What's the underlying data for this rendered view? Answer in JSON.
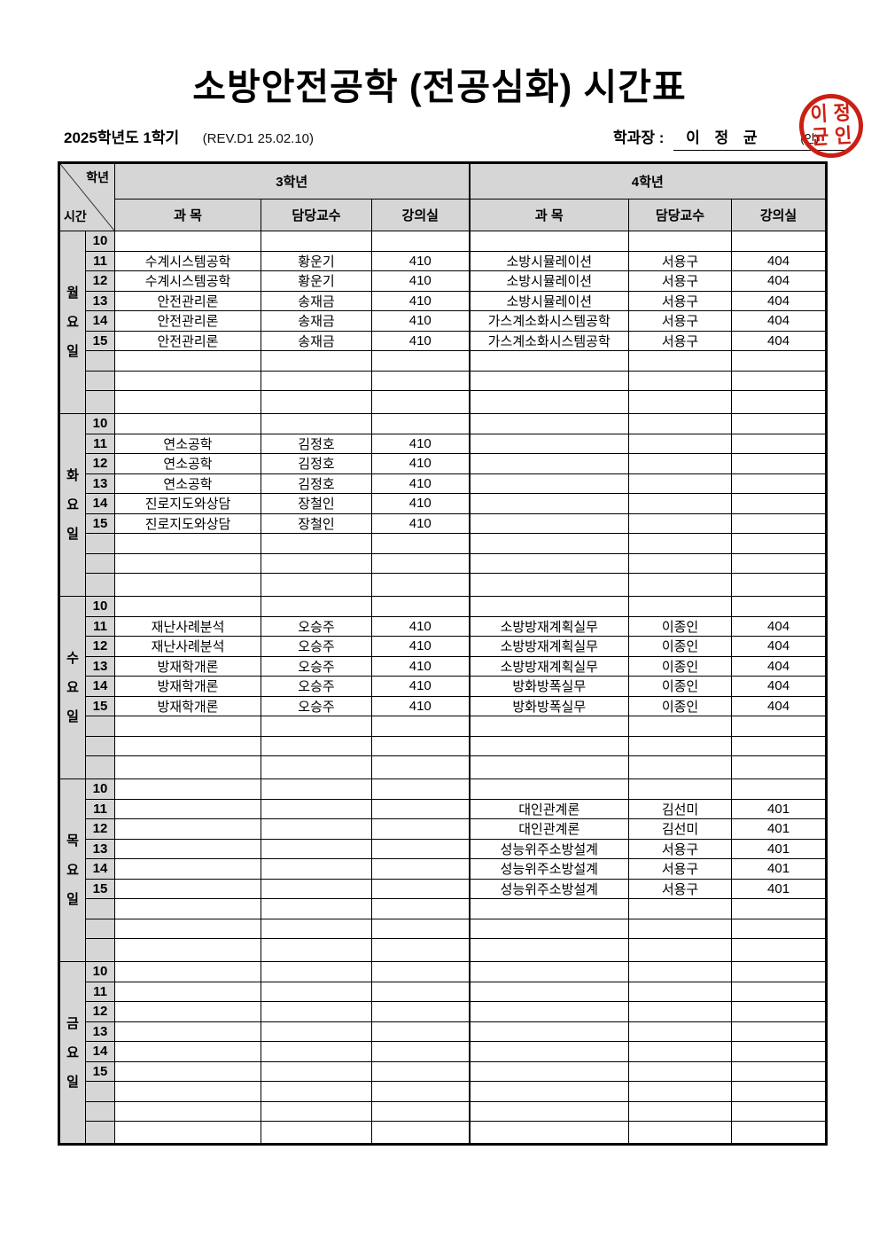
{
  "title": "소방안전공학 (전공심화) 시간표",
  "meta": {
    "semester": "2025학년도 1학기",
    "revision": "(REV.D1 25.02.10)"
  },
  "signature": {
    "label": "학과장 :",
    "name": "이 정 균",
    "seal_suffix": "(인)",
    "stamp_color": "#cc1f14",
    "stamp_chars": [
      "이",
      "정",
      "균",
      "인"
    ]
  },
  "table": {
    "corner": {
      "top": "학년",
      "bottom": "시간"
    },
    "grade_headers": [
      "3학년",
      "4학년"
    ],
    "sub_headers": [
      "과      목",
      "담당교수",
      "강의실"
    ],
    "days": [
      {
        "label": [
          "월",
          "요",
          "일"
        ],
        "rows": [
          {
            "time": "10",
            "g3": [
              "",
              "",
              ""
            ],
            "g4": [
              "",
              "",
              ""
            ]
          },
          {
            "time": "11",
            "g3": [
              "수계시스템공학",
              "황운기",
              "410"
            ],
            "g4": [
              "소방시뮬레이션",
              "서용구",
              "404"
            ]
          },
          {
            "time": "12",
            "g3": [
              "수계시스템공학",
              "황운기",
              "410"
            ],
            "g4": [
              "소방시뮬레이션",
              "서용구",
              "404"
            ]
          },
          {
            "time": "13",
            "g3": [
              "안전관리론",
              "송재금",
              "410"
            ],
            "g4": [
              "소방시뮬레이션",
              "서용구",
              "404"
            ]
          },
          {
            "time": "14",
            "g3": [
              "안전관리론",
              "송재금",
              "410"
            ],
            "g4": [
              "가스계소화시스템공학",
              "서용구",
              "404"
            ]
          },
          {
            "time": "15",
            "g3": [
              "안전관리론",
              "송재금",
              "410"
            ],
            "g4": [
              "가스계소화시스템공학",
              "서용구",
              "404"
            ]
          },
          {
            "time": "",
            "g3": [
              "",
              "",
              ""
            ],
            "g4": [
              "",
              "",
              ""
            ]
          },
          {
            "time": "",
            "g3": [
              "",
              "",
              ""
            ],
            "g4": [
              "",
              "",
              ""
            ]
          },
          {
            "time": "",
            "g3": [
              "",
              "",
              ""
            ],
            "g4": [
              "",
              "",
              ""
            ]
          }
        ]
      },
      {
        "label": [
          "화",
          "요",
          "일"
        ],
        "rows": [
          {
            "time": "10",
            "g3": [
              "",
              "",
              ""
            ],
            "g4": [
              "",
              "",
              ""
            ]
          },
          {
            "time": "11",
            "g3": [
              "연소공학",
              "김정호",
              "410"
            ],
            "g4": [
              "",
              "",
              ""
            ]
          },
          {
            "time": "12",
            "g3": [
              "연소공학",
              "김정호",
              "410"
            ],
            "g4": [
              "",
              "",
              ""
            ]
          },
          {
            "time": "13",
            "g3": [
              "연소공학",
              "김정호",
              "410"
            ],
            "g4": [
              "",
              "",
              ""
            ]
          },
          {
            "time": "14",
            "g3": [
              "진로지도와상담",
              "장철인",
              "410"
            ],
            "g4": [
              "",
              "",
              ""
            ]
          },
          {
            "time": "15",
            "g3": [
              "진로지도와상담",
              "장철인",
              "410"
            ],
            "g4": [
              "",
              "",
              ""
            ]
          },
          {
            "time": "",
            "g3": [
              "",
              "",
              ""
            ],
            "g4": [
              "",
              "",
              ""
            ]
          },
          {
            "time": "",
            "g3": [
              "",
              "",
              ""
            ],
            "g4": [
              "",
              "",
              ""
            ]
          },
          {
            "time": "",
            "g3": [
              "",
              "",
              ""
            ],
            "g4": [
              "",
              "",
              ""
            ]
          }
        ]
      },
      {
        "label": [
          "수",
          "요",
          "일"
        ],
        "rows": [
          {
            "time": "10",
            "g3": [
              "",
              "",
              ""
            ],
            "g4": [
              "",
              "",
              ""
            ]
          },
          {
            "time": "11",
            "g3": [
              "재난사례분석",
              "오승주",
              "410"
            ],
            "g4": [
              "소방방재계획실무",
              "이종인",
              "404"
            ]
          },
          {
            "time": "12",
            "g3": [
              "재난사례분석",
              "오승주",
              "410"
            ],
            "g4": [
              "소방방재계획실무",
              "이종인",
              "404"
            ]
          },
          {
            "time": "13",
            "g3": [
              "방재학개론",
              "오승주",
              "410"
            ],
            "g4": [
              "소방방재계획실무",
              "이종인",
              "404"
            ]
          },
          {
            "time": "14",
            "g3": [
              "방재학개론",
              "오승주",
              "410"
            ],
            "g4": [
              "방화방폭실무",
              "이종인",
              "404"
            ]
          },
          {
            "time": "15",
            "g3": [
              "방재학개론",
              "오승주",
              "410"
            ],
            "g4": [
              "방화방폭실무",
              "이종인",
              "404"
            ]
          },
          {
            "time": "",
            "g3": [
              "",
              "",
              ""
            ],
            "g4": [
              "",
              "",
              ""
            ]
          },
          {
            "time": "",
            "g3": [
              "",
              "",
              ""
            ],
            "g4": [
              "",
              "",
              ""
            ]
          },
          {
            "time": "",
            "g3": [
              "",
              "",
              ""
            ],
            "g4": [
              "",
              "",
              ""
            ]
          }
        ]
      },
      {
        "label": [
          "목",
          "요",
          "일"
        ],
        "rows": [
          {
            "time": "10",
            "g3": [
              "",
              "",
              ""
            ],
            "g4": [
              "",
              "",
              ""
            ]
          },
          {
            "time": "11",
            "g3": [
              "",
              "",
              ""
            ],
            "g4": [
              "대인관계론",
              "김선미",
              "401"
            ]
          },
          {
            "time": "12",
            "g3": [
              "",
              "",
              ""
            ],
            "g4": [
              "대인관계론",
              "김선미",
              "401"
            ]
          },
          {
            "time": "13",
            "g3": [
              "",
              "",
              ""
            ],
            "g4": [
              "성능위주소방설계",
              "서용구",
              "401"
            ]
          },
          {
            "time": "14",
            "g3": [
              "",
              "",
              ""
            ],
            "g4": [
              "성능위주소방설계",
              "서용구",
              "401"
            ]
          },
          {
            "time": "15",
            "g3": [
              "",
              "",
              ""
            ],
            "g4": [
              "성능위주소방설계",
              "서용구",
              "401"
            ]
          },
          {
            "time": "",
            "g3": [
              "",
              "",
              ""
            ],
            "g4": [
              "",
              "",
              ""
            ]
          },
          {
            "time": "",
            "g3": [
              "",
              "",
              ""
            ],
            "g4": [
              "",
              "",
              ""
            ]
          },
          {
            "time": "",
            "g3": [
              "",
              "",
              ""
            ],
            "g4": [
              "",
              "",
              ""
            ]
          }
        ]
      },
      {
        "label": [
          "금",
          "요",
          "일"
        ],
        "rows": [
          {
            "time": "10",
            "g3": [
              "",
              "",
              ""
            ],
            "g4": [
              "",
              "",
              ""
            ]
          },
          {
            "time": "11",
            "g3": [
              "",
              "",
              ""
            ],
            "g4": [
              "",
              "",
              ""
            ]
          },
          {
            "time": "12",
            "g3": [
              "",
              "",
              ""
            ],
            "g4": [
              "",
              "",
              ""
            ]
          },
          {
            "time": "13",
            "g3": [
              "",
              "",
              ""
            ],
            "g4": [
              "",
              "",
              ""
            ]
          },
          {
            "time": "14",
            "g3": [
              "",
              "",
              ""
            ],
            "g4": [
              "",
              "",
              ""
            ]
          },
          {
            "time": "15",
            "g3": [
              "",
              "",
              ""
            ],
            "g4": [
              "",
              "",
              ""
            ]
          },
          {
            "time": "",
            "g3": [
              "",
              "",
              ""
            ],
            "g4": [
              "",
              "",
              ""
            ]
          },
          {
            "time": "",
            "g3": [
              "",
              "",
              ""
            ],
            "g4": [
              "",
              "",
              ""
            ]
          },
          {
            "time": "",
            "g3": [
              "",
              "",
              ""
            ],
            "g4": [
              "",
              "",
              ""
            ]
          }
        ]
      }
    ]
  }
}
